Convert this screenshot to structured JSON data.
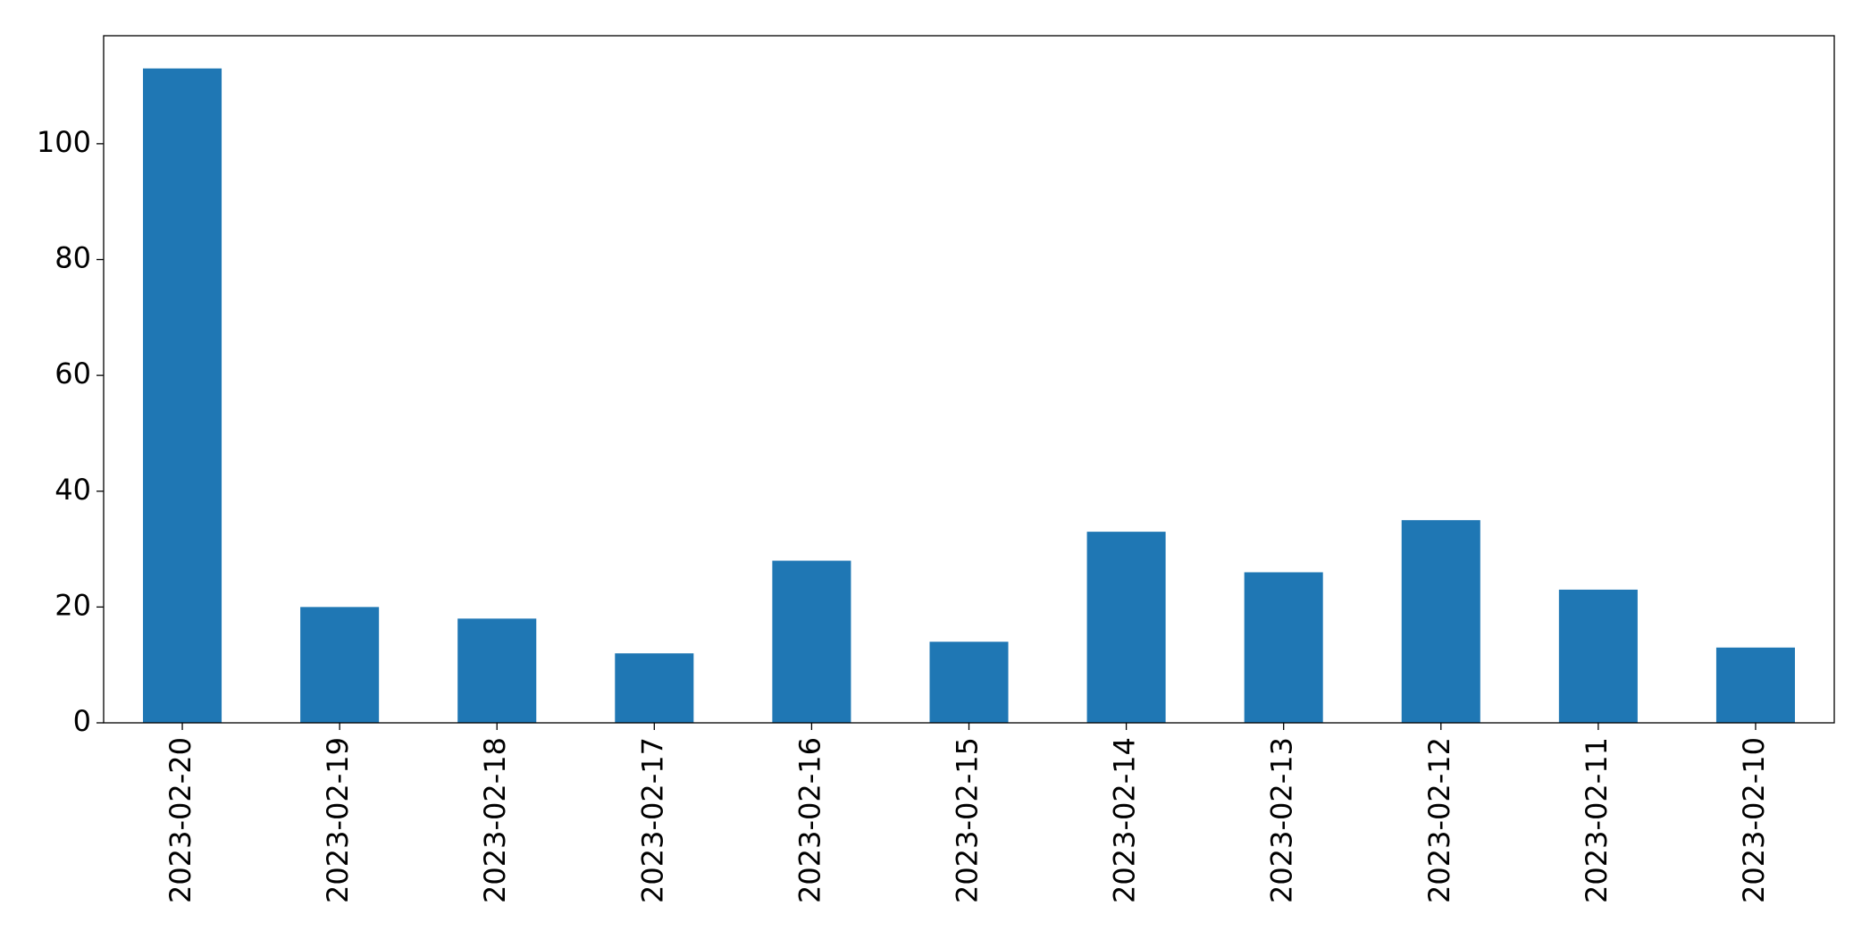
{
  "chart_data": {
    "type": "bar",
    "categories": [
      "2023-02-20",
      "2023-02-19",
      "2023-02-18",
      "2023-02-17",
      "2023-02-16",
      "2023-02-15",
      "2023-02-14",
      "2023-02-13",
      "2023-02-12",
      "2023-02-11",
      "2023-02-10"
    ],
    "values": [
      113,
      20,
      18,
      12,
      28,
      14,
      33,
      26,
      35,
      23,
      13
    ],
    "color": "#1f77b4",
    "ylim": [
      0,
      118.65
    ],
    "yticks": [
      0,
      20,
      40,
      60,
      80,
      100
    ],
    "grid": false
  }
}
